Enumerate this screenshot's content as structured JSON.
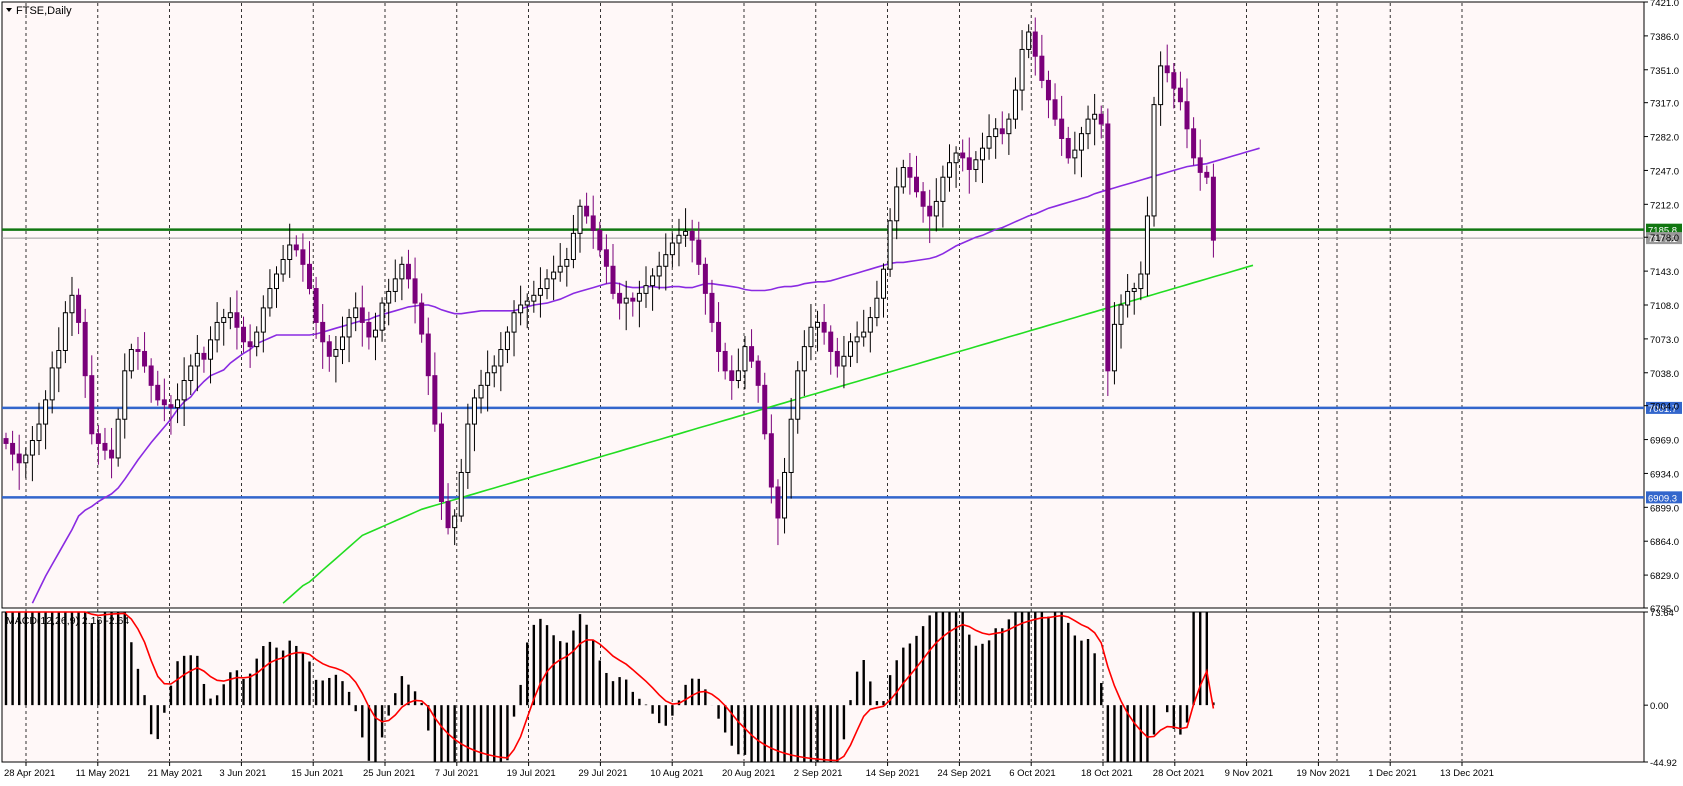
{
  "window": {
    "title": "FTSE,Daily"
  },
  "colors": {
    "background": "#fff8f8",
    "frame": "#000000",
    "grid": "#000000",
    "bull": "#000000",
    "bear": "#7a007a",
    "ma_short": "#8a2be2",
    "ma_long": "#22dd22",
    "support_green": "#117711",
    "support_blue": "#3366cc",
    "macd_signal": "#ff0000"
  },
  "chart_data": [
    {
      "type": "candlestick",
      "symbol": "FTSE",
      "timeframe": "Daily",
      "ylim": [
        6795.0,
        7421.0
      ],
      "y_ticks": [
        {
          "value": 7421.0,
          "label": "7421.0"
        },
        {
          "value": 7386.0,
          "label": "7386.0"
        },
        {
          "value": 7351.0,
          "label": "7351.0"
        },
        {
          "value": 7317.0,
          "label": "7317.0"
        },
        {
          "value": 7282.0,
          "label": "7282.0"
        },
        {
          "value": 7247.0,
          "label": "7247.0"
        },
        {
          "value": 7212.0,
          "label": "7212.0"
        },
        {
          "value": 7178.0,
          "label": "7178.0"
        },
        {
          "value": 7143.0,
          "label": "7143.0"
        },
        {
          "value": 7108.0,
          "label": "7108.0"
        },
        {
          "value": 7073.0,
          "label": "7073.0"
        },
        {
          "value": 7038.0,
          "label": "7038.0"
        },
        {
          "value": 7004.0,
          "label": "7004.0"
        },
        {
          "value": 6969.0,
          "label": "6969.0"
        },
        {
          "value": 6934.0,
          "label": "6934.0"
        },
        {
          "value": 6899.0,
          "label": "6899.0"
        },
        {
          "value": 6864.0,
          "label": "6864.0"
        },
        {
          "value": 6829.0,
          "label": "6829.0"
        },
        {
          "value": 6795.0,
          "label": "6795.0"
        }
      ],
      "x_labels": [
        "28 Apr 2021",
        "11 May 2021",
        "21 May 2021",
        "3 Jun 2021",
        "15 Jun 2021",
        "25 Jun 2021",
        "7 Jul 2021",
        "19 Jul 2021",
        "29 Jul 2021",
        "10 Aug 2021",
        "20 Aug 2021",
        "2 Sep 2021",
        "14 Sep 2021",
        "24 Sep 2021",
        "6 Oct 2021",
        "18 Oct 2021",
        "28 Oct 2021",
        "9 Nov 2021",
        "19 Nov 2021",
        "1 Dec 2021",
        "13 Dec 2021"
      ],
      "levels": [
        {
          "value": 7185.8,
          "label": "7185.8",
          "color": "#117711"
        },
        {
          "value": 7177.1,
          "label": "7177.1",
          "color": "#999999"
        },
        {
          "value": 7001.7,
          "label": "7001.7",
          "color": "#3366cc"
        },
        {
          "value": 6909.3,
          "label": "6909.3",
          "color": "#3366cc"
        }
      ],
      "closes": [
        6965,
        6954,
        6945,
        6953,
        6968,
        6985,
        7010,
        7043,
        7061,
        7100,
        7118,
        7090,
        7035,
        6975,
        6965,
        6958,
        6950,
        6990,
        7040,
        7062,
        7060,
        7045,
        7025,
        7010,
        7005,
        7002,
        7010,
        7030,
        7045,
        7058,
        7052,
        7072,
        7090,
        7095,
        7100,
        7085,
        7070,
        7065,
        7080,
        7105,
        7125,
        7140,
        7155,
        7170,
        7165,
        7150,
        7125,
        7090,
        7070,
        7055,
        7062,
        7075,
        7095,
        7105,
        7090,
        7075,
        7082,
        7110,
        7122,
        7135,
        7150,
        7135,
        7110,
        7078,
        7035,
        6985,
        6905,
        6878,
        6890,
        6935,
        6985,
        7012,
        7025,
        7038,
        7045,
        7062,
        7080,
        7100,
        7108,
        7112,
        7118,
        7125,
        7135,
        7142,
        7148,
        7155,
        7182,
        7210,
        7200,
        7185,
        7165,
        7148,
        7120,
        7110,
        7115,
        7112,
        7120,
        7128,
        7138,
        7148,
        7160,
        7172,
        7180,
        7184,
        7175,
        7150,
        7120,
        7090,
        7060,
        7040,
        7030,
        7040,
        7065,
        7050,
        7025,
        6975,
        6920,
        6888,
        6935,
        6990,
        7040,
        7065,
        7085,
        7090,
        7080,
        7060,
        7045,
        7055,
        7070,
        7075,
        7080,
        7095,
        7115,
        7145,
        7195,
        7230,
        7250,
        7240,
        7225,
        7210,
        7200,
        7215,
        7240,
        7255,
        7265,
        7260,
        7248,
        7258,
        7270,
        7282,
        7290,
        7285,
        7300,
        7330,
        7372,
        7390,
        7365,
        7340,
        7320,
        7300,
        7280,
        7260,
        7268,
        7285,
        7300,
        7305,
        7295,
        7040,
        7088,
        7108,
        7122,
        7125,
        7140,
        7200,
        7315,
        7355,
        7348,
        7332,
        7318,
        7290,
        7260,
        7245,
        7240,
        7175
      ],
      "ma_short": [
        6742,
        6752,
        6768,
        6786,
        6800,
        6814,
        6828,
        6840,
        6852,
        6864,
        6876,
        6890,
        6896,
        6900,
        6905,
        6909,
        6913,
        6919,
        6928,
        6938,
        6948,
        6957,
        6966,
        6974,
        6982,
        6990,
        7000,
        7008,
        7013,
        7022,
        7029,
        7035,
        7038,
        7041,
        7048,
        7053,
        7058,
        7062,
        7068,
        7071,
        7074,
        7077,
        7077,
        7077,
        7077,
        7077,
        7077,
        7078,
        7080,
        7082,
        7084,
        7086,
        7088,
        7090,
        7092,
        7093,
        7096,
        7098,
        7100,
        7102,
        7104,
        7106,
        7107,
        7108,
        7108,
        7106,
        7103,
        7101,
        7099,
        7099,
        7100,
        7101,
        7102,
        7102,
        7102,
        7102,
        7102,
        7102,
        7104,
        7106,
        7108,
        7109,
        7110,
        7112,
        7114,
        7117,
        7120,
        7122,
        7124,
        7126,
        7128,
        7130,
        7131,
        7130,
        7127,
        7126,
        7126,
        7127,
        7127,
        7126,
        7126,
        7127,
        7127,
        7126,
        7126,
        7128,
        7130,
        7130,
        7129,
        7128,
        7127,
        7126,
        7124,
        7123,
        7123,
        7123,
        7124,
        7126,
        7127,
        7127,
        7128,
        7130,
        7131,
        7132,
        7132,
        7133,
        7135,
        7137,
        7139,
        7141,
        7143,
        7145,
        7147,
        7149,
        7151,
        7152,
        7152,
        7153,
        7154,
        7155,
        7156,
        7158,
        7161,
        7165,
        7169,
        7172,
        7175,
        7178,
        7180,
        7183,
        7186,
        7188,
        7191,
        7194,
        7197,
        7200,
        7202,
        7205,
        7208,
        7210,
        7212,
        7214,
        7216,
        7218,
        7220,
        7223,
        7225,
        7227,
        7229,
        7231,
        7233,
        7235,
        7237,
        7239,
        7241,
        7243,
        7245,
        7247,
        7249,
        7251,
        7252,
        7253,
        7254,
        7256,
        7258,
        7260,
        7262,
        7264,
        7266,
        7268,
        7270
      ],
      "ma_long": [
        6548,
        6554,
        6560,
        6566,
        6572,
        6578,
        6584,
        6590,
        6596,
        6602,
        6608,
        6614,
        6620,
        6626,
        6632,
        6638,
        6644,
        6650,
        6656,
        6662,
        6668,
        6674,
        6680,
        6686,
        6692,
        6698,
        6704,
        6710,
        6716,
        6722,
        6728,
        6734,
        6740,
        6746,
        6752,
        6758,
        6764,
        6770,
        6776,
        6782,
        6788,
        6794,
        6800,
        6806,
        6812,
        6818,
        6822,
        6828,
        6834,
        6840,
        6846,
        6852,
        6858,
        6864,
        6870,
        6873,
        6876,
        6879,
        6882,
        6885,
        6888,
        6891,
        6894,
        6897,
        6899,
        6901,
        6903,
        6905,
        6907,
        6909,
        6911,
        6913,
        6915,
        6917,
        6919,
        6921,
        6923,
        6925,
        6927,
        6929,
        6931,
        6933,
        6935,
        6937,
        6939,
        6941,
        6943,
        6945,
        6947,
        6949,
        6951,
        6953,
        6955,
        6957,
        6959,
        6961,
        6963,
        6965,
        6967,
        6969,
        6971,
        6973,
        6975,
        6977,
        6979,
        6981,
        6983,
        6985,
        6987,
        6989,
        6991,
        6993,
        6995,
        6997,
        6999,
        7001,
        7003,
        7005,
        7007,
        7009,
        7011,
        7013,
        7015,
        7017,
        7019,
        7021,
        7023,
        7025,
        7027,
        7029,
        7031,
        7033,
        7035,
        7037,
        7039,
        7041,
        7043,
        7045,
        7047,
        7049,
        7051,
        7053,
        7055,
        7057,
        7059,
        7061,
        7063,
        7065,
        7067,
        7069,
        7071,
        7073,
        7075,
        7077,
        7079,
        7081,
        7083,
        7085,
        7087,
        7089,
        7091,
        7093,
        7095,
        7097,
        7099,
        7101,
        7103,
        7105,
        7107,
        7109,
        7111,
        7113,
        7115,
        7117,
        7119,
        7121,
        7123,
        7125,
        7127,
        7129,
        7131,
        7133,
        7135,
        7137,
        7139,
        7141,
        7143,
        7145,
        7147,
        7149
      ]
    },
    {
      "type": "bar",
      "name": "MACD(12,26,9) 2.16 -2.64",
      "label": "MACD(12,26,9) 2.16 -2.64",
      "ylim": [
        -44.92,
        73.64
      ],
      "y_ticks": [
        {
          "value": 73.64,
          "label": "73.64"
        },
        {
          "value": 0.0,
          "label": "0.00"
        },
        {
          "value": -44.92,
          "label": "-44.92"
        }
      ],
      "main_last": 2.16,
      "signal_last": -2.64
    }
  ]
}
